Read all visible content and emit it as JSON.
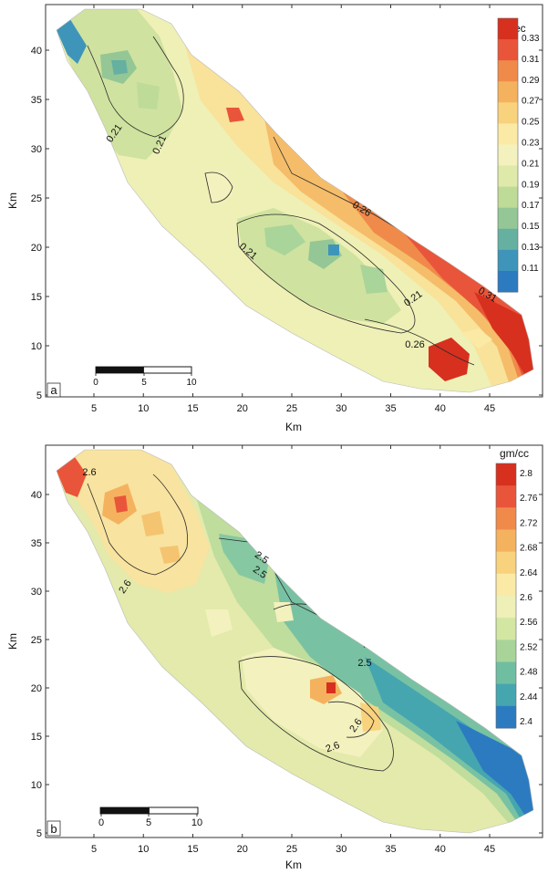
{
  "panels": [
    {
      "id": "a",
      "panel_label": "a",
      "unit": "Dec",
      "xlabel": "Km",
      "ylabel": "Km",
      "x_ticks": [
        "5",
        "10",
        "15",
        "20",
        "25",
        "30",
        "35",
        "40",
        "45"
      ],
      "y_ticks": [
        "5",
        "10",
        "15",
        "20",
        "25",
        "30",
        "35",
        "40"
      ],
      "colorbar_labels": [
        "0.33",
        "0.31",
        "0.29",
        "0.27",
        "0.25",
        "0.23",
        "0.21",
        "0.19",
        "0.17",
        "0.15",
        "0.13",
        "0.11"
      ],
      "colorbar_colors": [
        "#d7301f",
        "#e9553a",
        "#f08a4b",
        "#f5b25e",
        "#f9d27d",
        "#fbeaa6",
        "#f3f1bd",
        "#dfe9a9",
        "#bedb98",
        "#94c795",
        "#66b0a2",
        "#3e95b9",
        "#2c7bc0"
      ],
      "scale_labels": [
        "0",
        "5",
        "10"
      ],
      "contour_labels": [
        "0.21",
        "0.21",
        "0.26",
        "0.21",
        "0.21",
        "0.31",
        "0.26"
      ],
      "background_color": "#eef0b6",
      "line_color": "#2b2b2b"
    },
    {
      "id": "b",
      "panel_label": "b",
      "unit": "gm/cc",
      "xlabel": "Km",
      "ylabel": "Km",
      "x_ticks": [
        "5",
        "10",
        "15",
        "20",
        "25",
        "30",
        "35",
        "40",
        "45"
      ],
      "y_ticks": [
        "5",
        "10",
        "15",
        "20",
        "25",
        "30",
        "35",
        "40"
      ],
      "colorbar_labels": [
        "2.8",
        "2.76",
        "2.72",
        "2.68",
        "2.64",
        "2.6",
        "2.56",
        "2.52",
        "2.48",
        "2.44",
        "2.4"
      ],
      "colorbar_colors": [
        "#d7301f",
        "#e9553a",
        "#f08a4b",
        "#f5b25e",
        "#f9d27d",
        "#fbeaa6",
        "#eef0b8",
        "#d3e6a2",
        "#a8d49a",
        "#6fbea2",
        "#45a6b0",
        "#2c7bc0"
      ],
      "scale_labels": [
        "0",
        "5",
        "10"
      ],
      "contour_labels": [
        "2.6",
        "2.5",
        "2.5",
        "2.6",
        "2.5",
        "2.6",
        "2.6"
      ],
      "background_color": "#e3eaab",
      "line_color": "#2b2b2b"
    }
  ]
}
